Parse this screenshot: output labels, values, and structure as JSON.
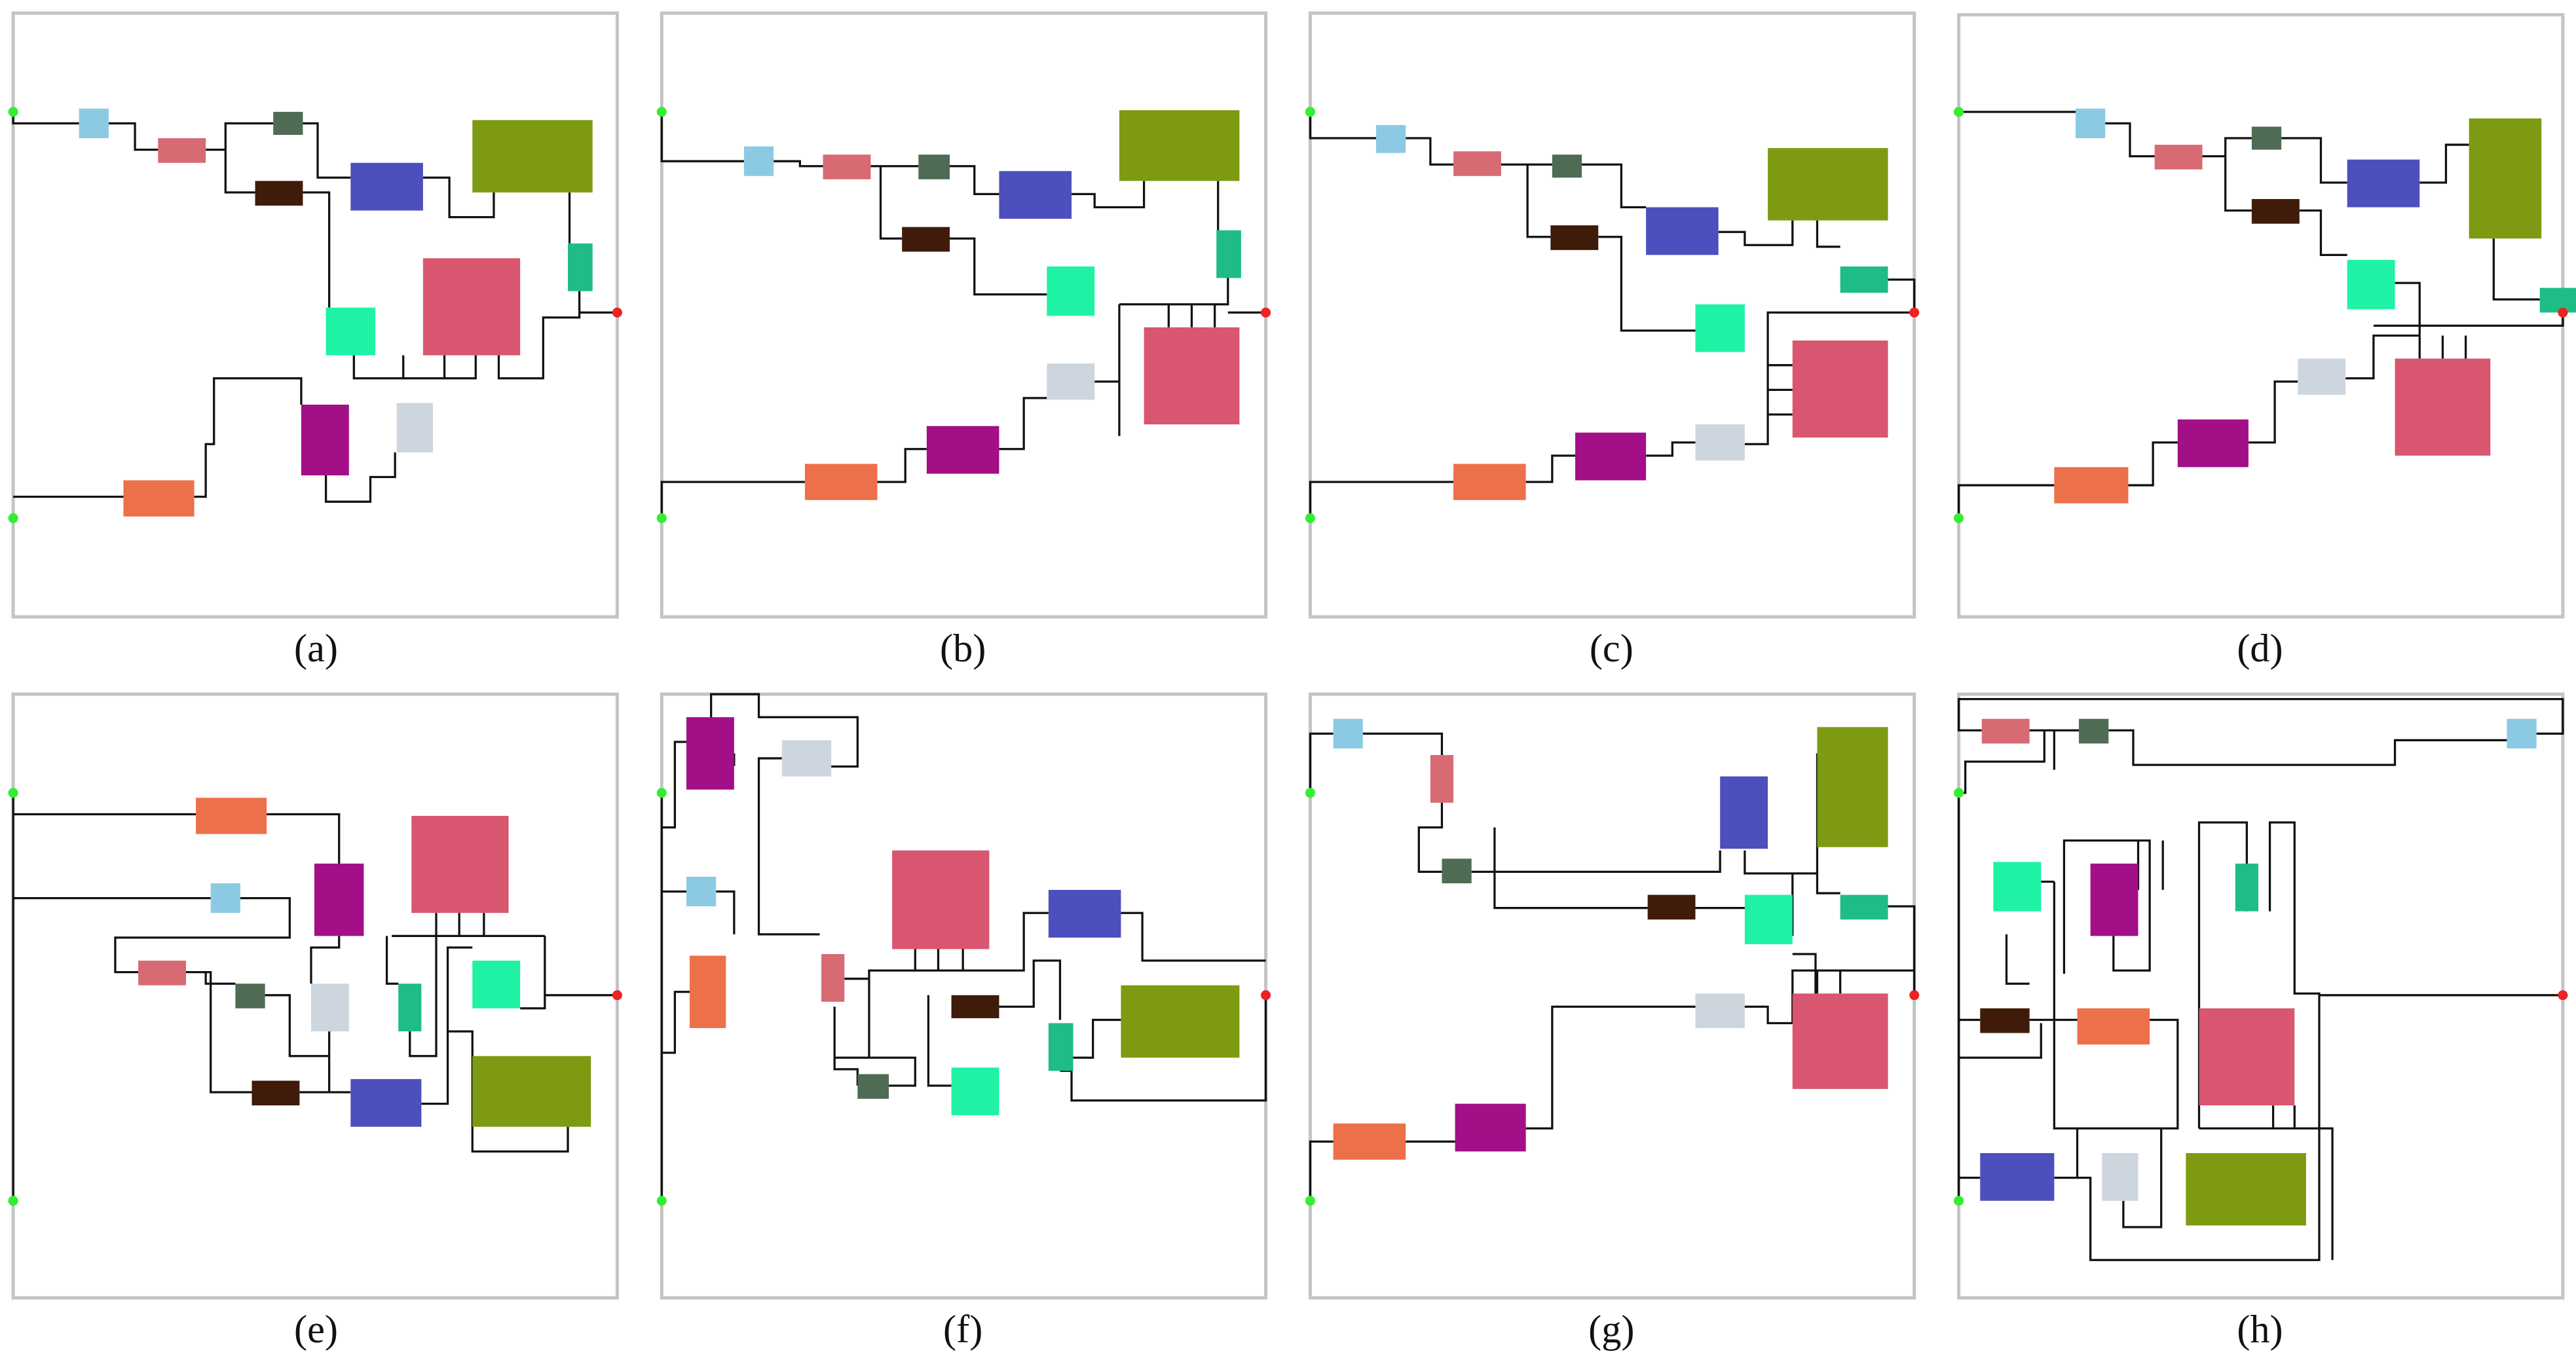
{
  "figure": {
    "captions": [
      "(a)",
      "(b)",
      "(c)",
      "(d)",
      "(e)",
      "(f)",
      "(g)",
      "(h)"
    ],
    "colors": {
      "frame": "#c4c4c4",
      "wire": "#111111",
      "terminal_input": "#33ee33",
      "terminal_output": "#ee2222",
      "light_blue": "#8ccae4",
      "salmon": "#d86a74",
      "gray_green": "#4f6b54",
      "dark_brown": "#3f1b0a",
      "indigo": "#4c4fbd",
      "olive": "#7e9a12",
      "mint": "#1ff2a4",
      "rose": "#d8566f",
      "teal": "#1fbc86",
      "magenta": "#a20f87",
      "silver": "#cdd6df",
      "orange": "#ec7049"
    }
  }
}
